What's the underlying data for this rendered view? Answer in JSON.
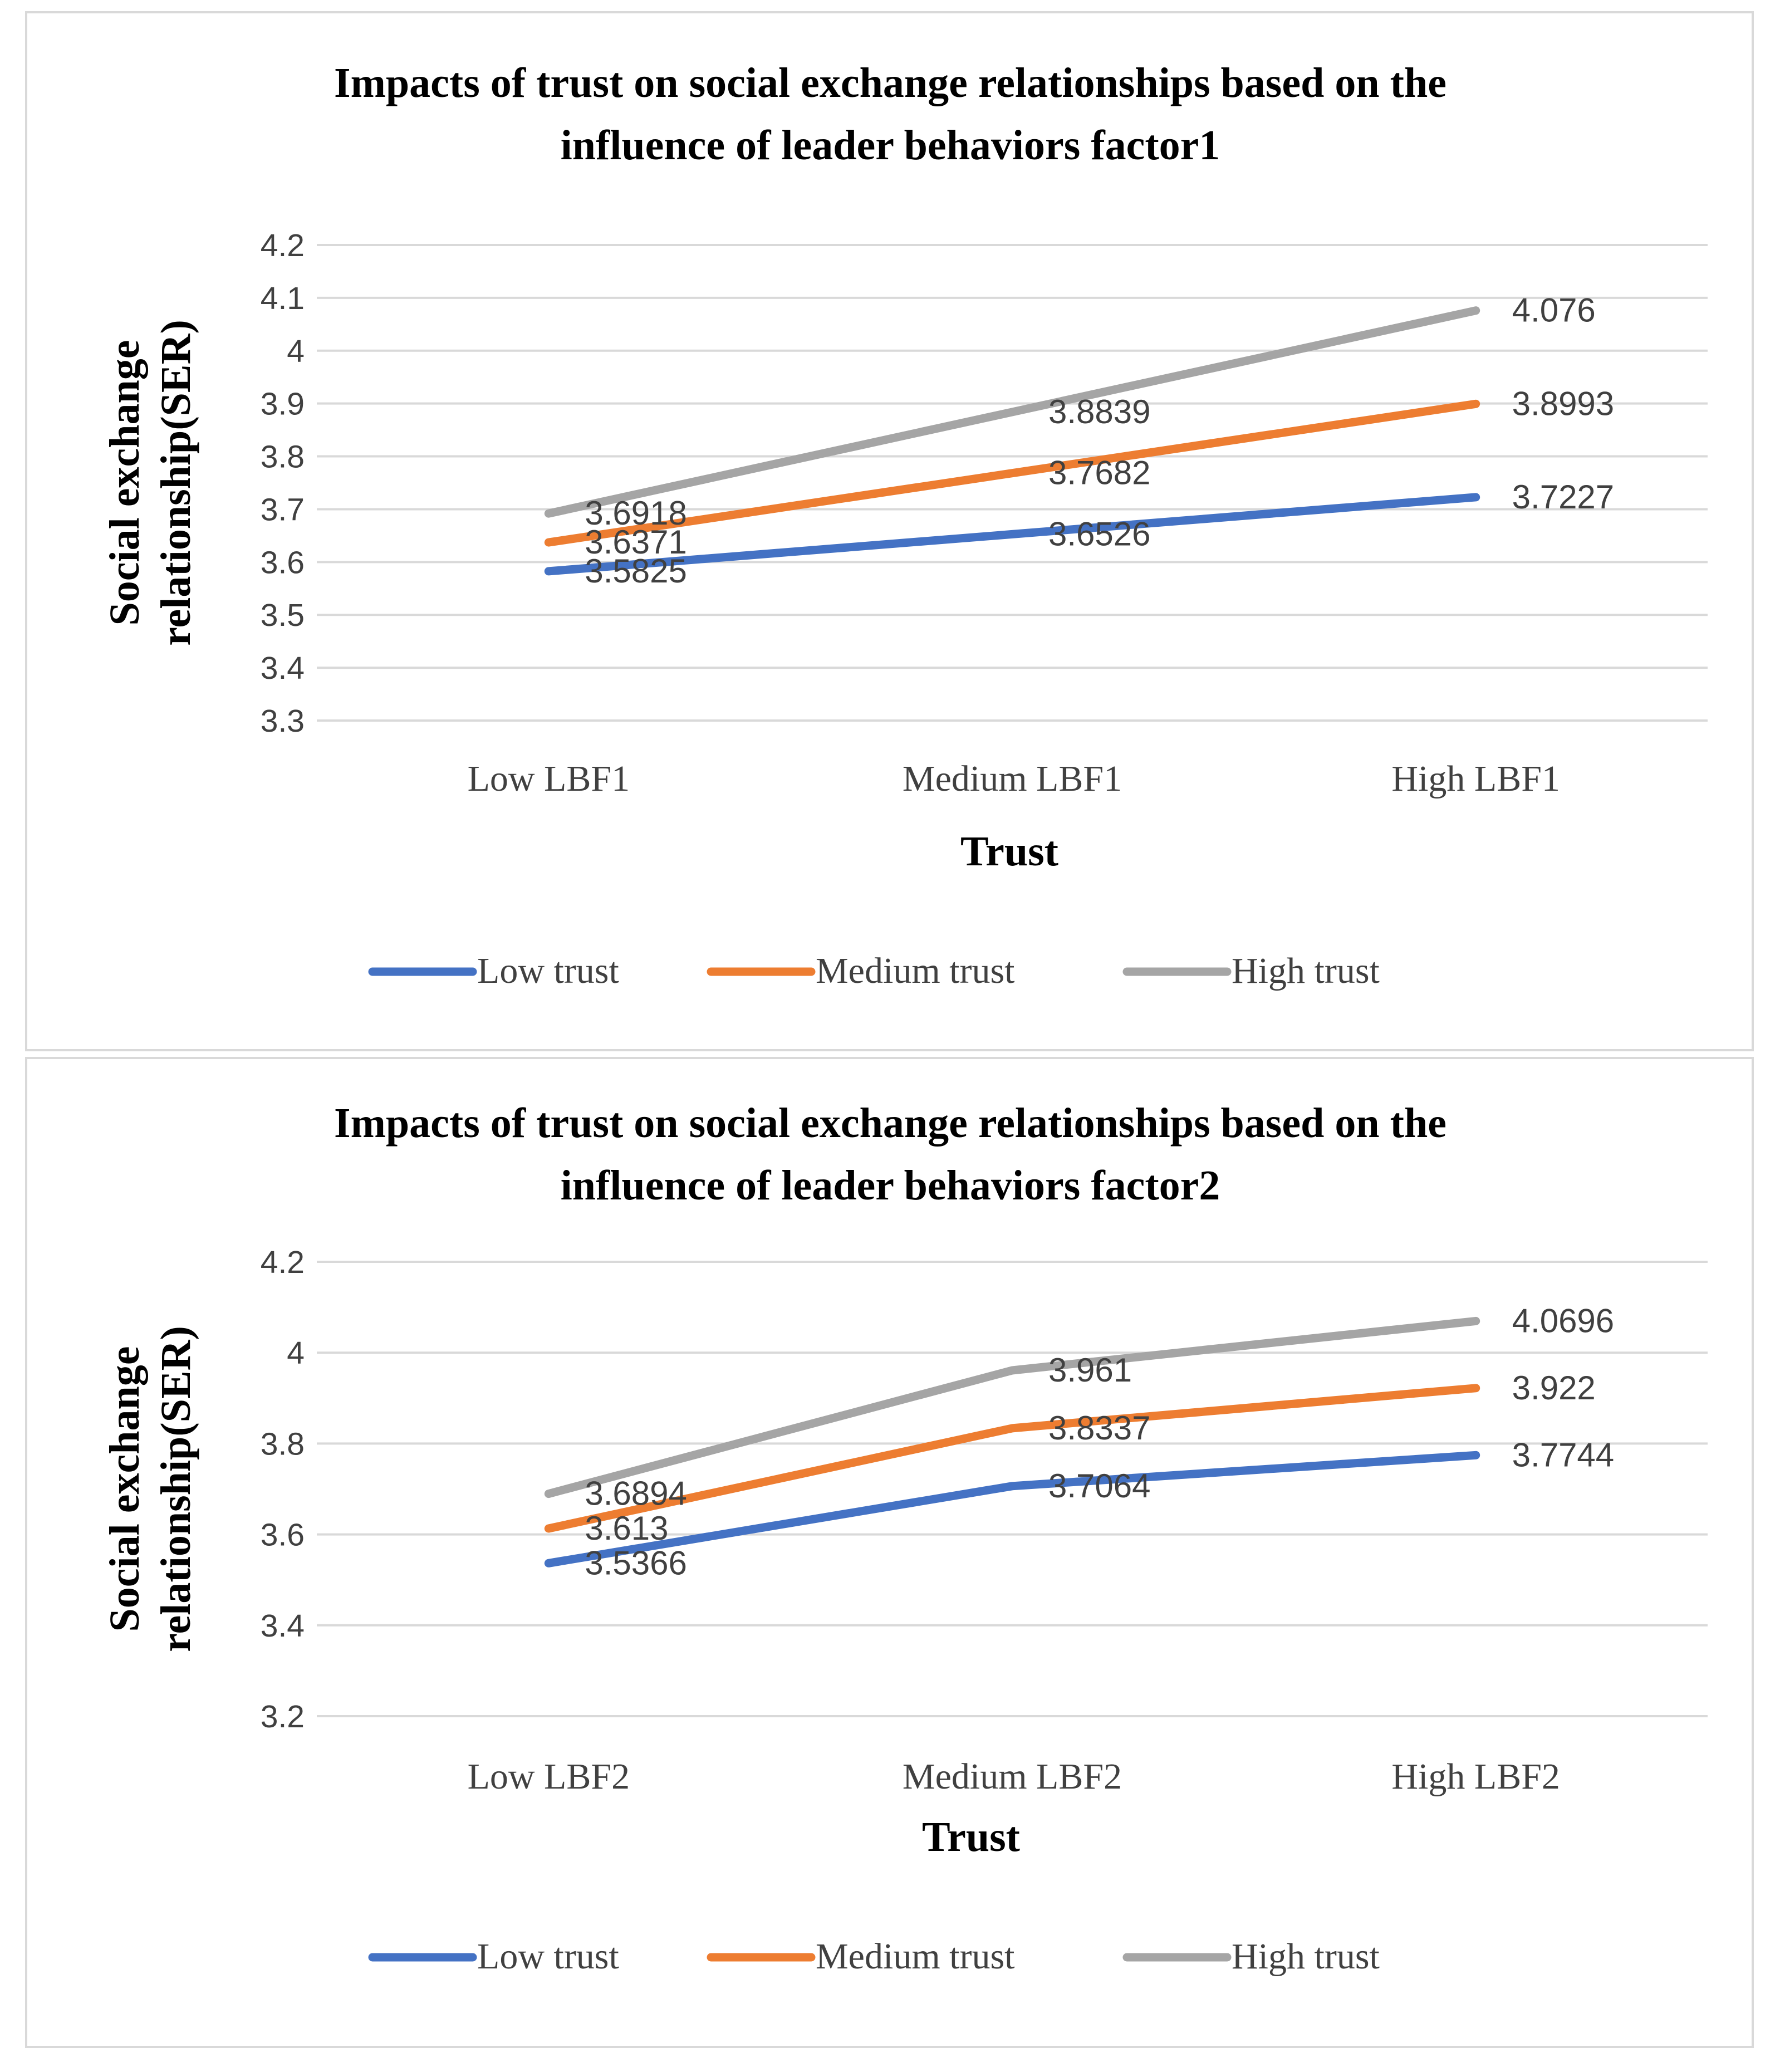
{
  "series_colors": {
    "Low trust": "#4472c4",
    "Medium trust": "#ed7d31",
    "High trust": "#a5a5a5"
  },
  "chart_data": [
    {
      "type": "line",
      "title_lines": [
        "Impacts of trust on  social exchange relationships based on the",
        "influence of leader behaviors factor1"
      ],
      "categories": [
        "Low LBF1",
        "Medium LBF1",
        "High LBF1"
      ],
      "xlabel": "Trust",
      "ylabel_lines": [
        "Social exchange",
        "relationship(SER)"
      ],
      "ylim": [
        3.3,
        4.2
      ],
      "yticks": [
        "3.3",
        "3.4",
        "3.5",
        "3.6",
        "3.7",
        "3.8",
        "3.9",
        "4",
        "4.1",
        "4.2"
      ],
      "grid": true,
      "legend": "bottom",
      "series": [
        {
          "name": "Low trust",
          "values": [
            3.5825,
            3.6526,
            3.7227
          ],
          "labels": [
            "3.5825",
            "3.6526",
            "3.7227"
          ]
        },
        {
          "name": "Medium trust",
          "values": [
            3.6371,
            3.7682,
            3.8993
          ],
          "labels": [
            "3.6371",
            "3.7682",
            "3.8993"
          ]
        },
        {
          "name": "High trust",
          "values": [
            3.6918,
            3.8839,
            4.076
          ],
          "labels": [
            "3.6918",
            "3.8839",
            "4.076"
          ]
        }
      ]
    },
    {
      "type": "line",
      "title_lines": [
        "Impacts of trust on  social exchange relationships based on the",
        "influence of leader behaviors factor2"
      ],
      "categories": [
        "Low LBF2",
        "Medium LBF2",
        "High LBF2"
      ],
      "xlabel": "Trust",
      "ylabel_lines": [
        "Social exchange",
        "relationship(SER)"
      ],
      "ylim": [
        3.2,
        4.2
      ],
      "yticks": [
        "3.2",
        "3.4",
        "3.6",
        "3.8",
        "4",
        "4.2"
      ],
      "grid": true,
      "legend": "bottom",
      "series": [
        {
          "name": "Low trust",
          "values": [
            3.5366,
            3.7064,
            3.7744
          ],
          "labels": [
            "3.5366",
            "3.7064",
            "3.7744"
          ]
        },
        {
          "name": "Medium trust",
          "values": [
            3.613,
            3.8337,
            3.922
          ],
          "labels": [
            "3.613",
            "3.8337",
            "3.922"
          ]
        },
        {
          "name": "High trust",
          "values": [
            3.6894,
            3.961,
            4.0696
          ],
          "labels": [
            "3.6894",
            "3.961",
            "4.0696"
          ]
        }
      ]
    }
  ]
}
